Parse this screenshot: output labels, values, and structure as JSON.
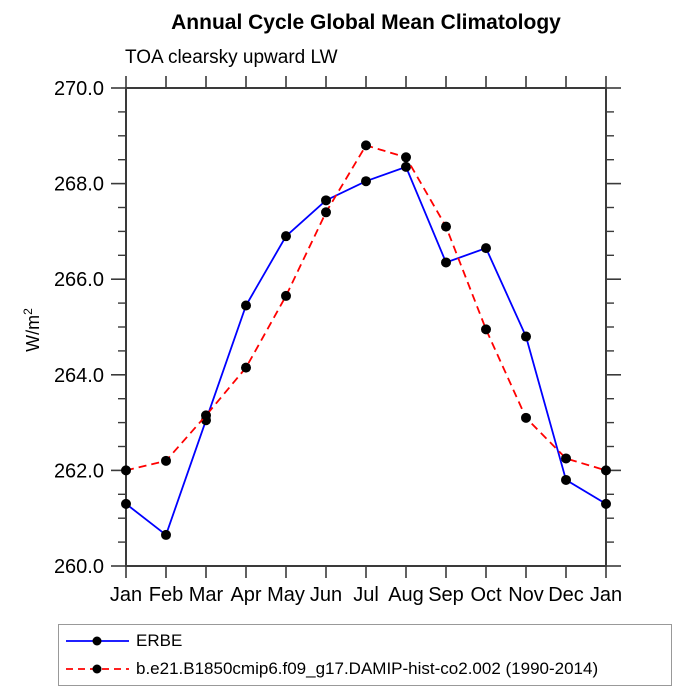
{
  "chart_data": {
    "type": "line",
    "title": "Annual Cycle Global Mean Climatology",
    "subtitle": "TOA clearsky upward LW",
    "ylabel_base": "W/m",
    "ylabel_sup": "2",
    "categories": [
      "Jan",
      "Feb",
      "Mar",
      "Apr",
      "May",
      "Jun",
      "Jul",
      "Aug",
      "Sep",
      "Oct",
      "Nov",
      "Dec",
      "Jan"
    ],
    "ylim": [
      260.0,
      270.0
    ],
    "ytick_values": [
      260,
      262,
      264,
      266,
      268,
      270
    ],
    "ytick_labels": [
      "260.0",
      "262.0",
      "264.0",
      "266.0",
      "268.0",
      "270.0"
    ],
    "yminor_step": 0.5,
    "grid": false,
    "legend_position": "bottom-left-box",
    "axis_color": "#3a3a3a",
    "marker_color": "#000000",
    "series": [
      {
        "name": "ERBE",
        "color": "#0000ff",
        "line_style": "solid",
        "marker": "filled-circle",
        "values": [
          261.3,
          260.65,
          263.05,
          265.45,
          266.9,
          267.65,
          268.05,
          268.35,
          266.35,
          266.65,
          264.8,
          261.8,
          261.3
        ]
      },
      {
        "name": "b.e21.B1850cmip6.f09_g17.DAMIP-hist-co2.002 (1990-2014)",
        "color": "#ff0000",
        "line_style": "dashed",
        "marker": "filled-circle",
        "values": [
          262.0,
          262.2,
          263.15,
          264.15,
          265.65,
          267.4,
          268.8,
          268.55,
          267.1,
          264.95,
          263.1,
          262.25,
          262.0
        ]
      }
    ]
  }
}
